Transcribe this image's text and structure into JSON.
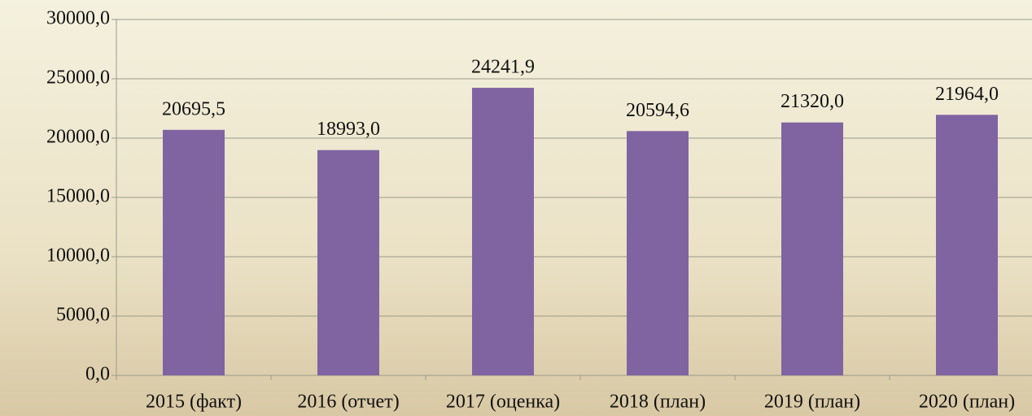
{
  "chart_data": {
    "type": "bar",
    "categories": [
      "2015 (факт)",
      "2016 (отчет)",
      "2017 (оценка)",
      "2018 (план)",
      "2019 (план)",
      "2020 (план)"
    ],
    "values": [
      20695.5,
      18993.0,
      24241.9,
      20594.6,
      21320.0,
      21964.0
    ],
    "value_labels": [
      "20695,5",
      "18993,0",
      "24241,9",
      "20594,6",
      "21320,0",
      "21964,0"
    ],
    "color": "#8064a2",
    "ylim": [
      0,
      30000
    ],
    "yticks": [
      {
        "value": 0,
        "label": "0,0"
      },
      {
        "value": 5000,
        "label": "5000,0"
      },
      {
        "value": 10000,
        "label": "10000,0"
      },
      {
        "value": 15000,
        "label": "15000,0"
      },
      {
        "value": 20000,
        "label": "20000,0"
      },
      {
        "value": 25000,
        "label": "25000,0"
      },
      {
        "value": 30000,
        "label": "30000,0"
      }
    ],
    "grid": true
  }
}
